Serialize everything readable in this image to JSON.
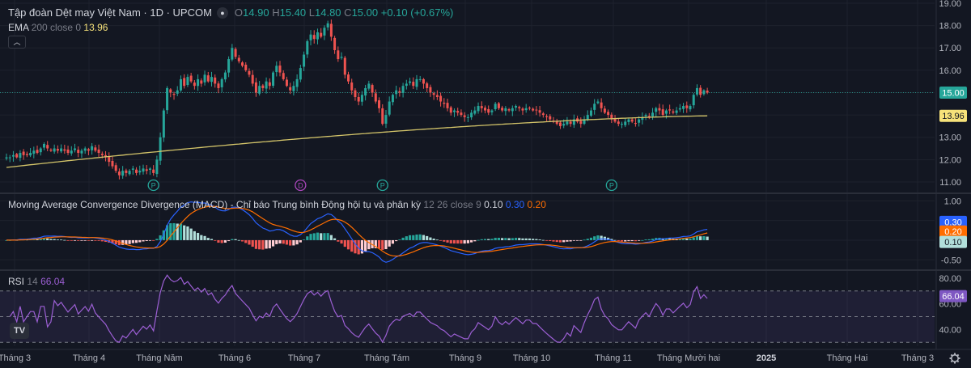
{
  "header": {
    "title": "Tập đoàn Dệt may Việt Nam · 1D · UPCOM",
    "ohlc": {
      "o_label": "O",
      "o": "14.90",
      "h_label": "H",
      "h": "15.40",
      "l_label": "L",
      "l": "14.80",
      "c_label": "C",
      "c": "15.00",
      "change": "+0.10 (+0.67%)"
    }
  },
  "ema_legend": {
    "name": "EMA",
    "params": "200 close 0",
    "value": "13.96"
  },
  "macd_legend": {
    "name": "Moving Average Convergence Divergence (MACD) - Chỉ báo Trung bình Động hội tụ và phân kỳ",
    "params": "12 26 close 9",
    "hist": "0.10",
    "macd": "0.30",
    "signal": "0.20"
  },
  "rsi_legend": {
    "name": "RSI",
    "params": "14",
    "value": "66.04"
  },
  "colors": {
    "background": "#131722",
    "up": "#26a69a",
    "down": "#ef5350",
    "ema": "#d4c56a",
    "macd_line": "#2962ff",
    "signal_line": "#ff6d00",
    "rsi": "#9c5fd4",
    "grid": "#1e222d"
  },
  "chart_data": [
    {
      "type": "candlestick",
      "ylim": [
        10.6,
        19.0
      ],
      "yticks": [
        "11.00",
        "12.00",
        "13.00",
        "14.00",
        "15.00",
        "16.00",
        "17.00",
        "18.00",
        "19.00"
      ],
      "close_path": [
        12.1,
        12.1,
        12.2,
        12.1,
        12.3,
        12.2,
        12.2,
        12.3,
        12.4,
        12.3,
        12.5,
        12.7,
        12.5,
        12.4,
        12.5,
        12.4,
        12.5,
        12.4,
        12.3,
        12.4,
        12.5,
        12.3,
        12.4,
        12.5,
        12.4,
        12.6,
        12.4,
        12.3,
        12.2,
        12.1,
        11.9,
        11.7,
        11.5,
        11.3,
        11.5,
        11.4,
        11.5,
        11.6,
        11.4,
        11.5,
        11.6,
        11.5,
        11.6,
        11.4,
        12.0,
        13.0,
        14.2,
        15.2,
        15.0,
        14.9,
        15.1,
        15.6,
        15.3,
        15.7,
        15.5,
        15.3,
        15.6,
        15.4,
        15.8,
        15.5,
        15.7,
        15.4,
        15.2,
        15.6,
        15.9,
        16.5,
        17.0,
        16.6,
        16.4,
        16.2,
        16.0,
        15.8,
        15.4,
        15.0,
        15.3,
        15.2,
        15.5,
        15.3,
        15.9,
        16.2,
        15.9,
        15.6,
        15.3,
        15.1,
        15.3,
        15.6,
        16.1,
        16.7,
        17.3,
        17.6,
        17.4,
        17.7,
        17.5,
        17.9,
        18.1,
        17.5,
        16.9,
        16.5,
        16.6,
        15.8,
        15.5,
        15.1,
        14.8,
        14.6,
        14.9,
        15.2,
        15.4,
        15.0,
        14.6,
        14.3,
        13.6,
        14.0,
        14.6,
        14.9,
        15.1,
        15.0,
        15.3,
        15.4,
        15.5,
        15.3,
        15.6,
        15.6,
        15.4,
        15.2,
        15.0,
        14.9,
        14.8,
        14.6,
        14.5,
        14.3,
        14.1,
        14.2,
        14.1,
        14.0,
        13.9,
        13.9,
        14.1,
        14.2,
        14.4,
        14.3,
        14.2,
        14.1,
        14.2,
        14.5,
        14.3,
        14.2,
        14.3,
        14.2,
        14.3,
        14.4,
        14.3,
        14.2,
        14.3,
        14.3,
        14.2,
        14.2,
        14.1,
        14.0,
        13.9,
        13.8,
        13.7,
        13.6,
        13.5,
        13.6,
        13.7,
        13.6,
        13.8,
        13.7,
        13.6,
        13.8,
        14.0,
        14.2,
        14.5,
        14.6,
        14.3,
        14.1,
        14.0,
        13.8,
        13.7,
        13.6,
        13.6,
        13.7,
        13.8,
        13.7,
        13.6,
        13.8,
        13.9,
        14.0,
        13.9,
        14.1,
        14.3,
        14.2,
        14.0,
        14.2,
        14.2,
        14.1,
        14.2,
        14.3,
        14.4,
        14.3,
        14.4,
        14.9,
        15.2,
        14.9,
        15.1,
        15.0
      ],
      "ema200": {
        "start": 11.65,
        "end": 13.96
      },
      "events": [
        {
          "letter": "P",
          "color": "#26a69a"
        },
        {
          "letter": "D",
          "color": "#ab47bc"
        },
        {
          "letter": "P",
          "color": "#26a69a"
        },
        {
          "letter": "P",
          "color": "#26a69a"
        }
      ],
      "price_labels": [
        {
          "text": "15.00",
          "value": 15.0,
          "color": "#26a69a"
        },
        {
          "text": "13.96",
          "value": 13.96,
          "color": "#f6e27a"
        }
      ]
    },
    {
      "type": "macd",
      "ylim": [
        -0.7,
        1.15
      ],
      "yticks": [
        "-0.50",
        "0.00",
        "0.50",
        "1.00"
      ],
      "price_labels": [
        {
          "text": "0.30",
          "value": 0.3,
          "color": "#2962ff"
        },
        {
          "text": "0.20",
          "value": 0.2,
          "color": "#ff6d00"
        },
        {
          "text": "0.10",
          "value": 0.1,
          "color": "#b2dfdb"
        }
      ]
    },
    {
      "type": "line",
      "name": "RSI",
      "ylim": [
        27,
        85
      ],
      "yticks": [
        "40.00",
        "60.00",
        "80.00"
      ],
      "bands": {
        "upper": 70,
        "middle": 50,
        "lower": 30
      },
      "price_labels": [
        {
          "text": "66.04",
          "value": 66.04,
          "color": "#7e57c2"
        }
      ]
    },
    {
      "type": "time-axis",
      "x_labels": [
        "Tháng 3",
        "Tháng 4",
        "Tháng Năm",
        "Tháng 6",
        "Tháng 7",
        "Tháng Tám",
        "Tháng 9",
        "Tháng 10",
        "Tháng 11",
        "Tháng Mười hai",
        "2025",
        "Tháng Hai",
        "Tháng 3"
      ]
    }
  ]
}
